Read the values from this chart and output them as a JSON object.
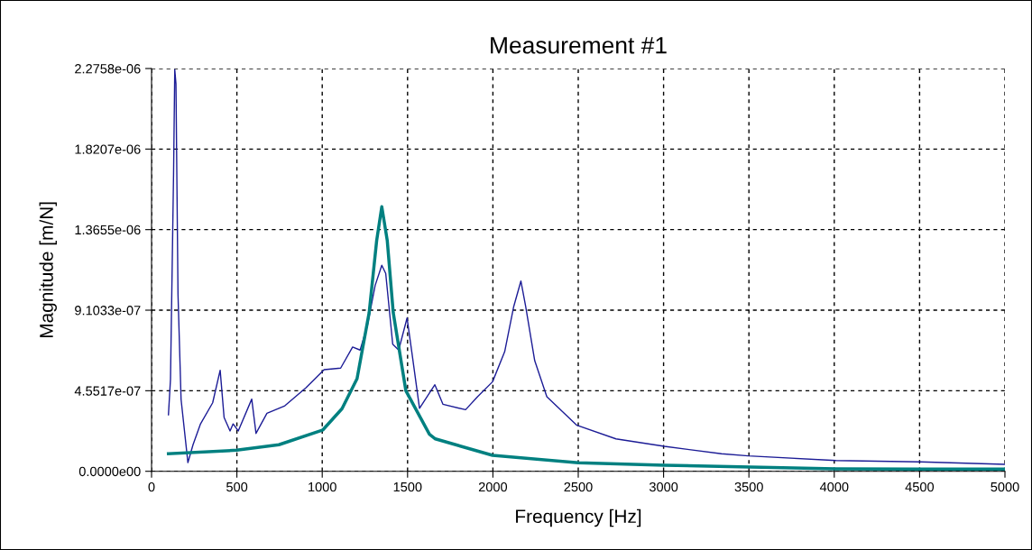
{
  "chart_data": {
    "type": "line",
    "title": "Measurement #1",
    "xlabel": "Frequency [Hz]",
    "ylabel": "Magnitude [m/N]",
    "xlim": [
      0,
      5000
    ],
    "xticks": [
      0,
      500,
      1000,
      1500,
      2000,
      2500,
      3000,
      3500,
      4000,
      4500,
      5000
    ],
    "ylim": [
      0,
      2.2758e-06
    ],
    "yticks": [
      {
        "value": 0,
        "label": "0.0000e00"
      },
      {
        "value": 4.5517e-07,
        "label": "4.5517e-07"
      },
      {
        "value": 9.1033e-07,
        "label": "9.1033e-07"
      },
      {
        "value": 1.3655e-06,
        "label": "1.3655e-06"
      },
      {
        "value": 1.8207e-06,
        "label": "1.8207e-06"
      },
      {
        "value": 2.2758e-06,
        "label": "2.2758e-06"
      }
    ],
    "grid": true,
    "legend": false,
    "marker": "none",
    "line_style": "solid",
    "series": [
      {
        "color": "#1c1c96",
        "x": [
          99,
          111,
          129,
          136,
          143,
          155,
          173,
          213,
          243,
          287,
          358,
          402,
          425,
          460,
          478,
          508,
          587,
          612,
          676,
          781,
          905,
          1011,
          1108,
          1178,
          1222,
          1266,
          1310,
          1349,
          1372,
          1413,
          1448,
          1497,
          1527,
          1570,
          1660,
          1707,
          1840,
          1910,
          1998,
          2069,
          2122,
          2164,
          2192,
          2245,
          2316,
          2492,
          2721,
          3004,
          3339,
          3497,
          4009,
          4503,
          5000
        ],
        "values": [
          3.19e-07,
          5.2e-07,
          1.68e-06,
          2.27e-06,
          2.19e-06,
          9.99e-07,
          4.06e-07,
          4.9e-08,
          1.5e-07,
          2.68e-07,
          3.87e-07,
          5.71e-07,
          3.04e-07,
          2.28e-07,
          2.68e-07,
          2.28e-07,
          4.08e-07,
          2.14e-07,
          3.28e-07,
          3.7e-07,
          4.72e-07,
          5.74e-07,
          5.83e-07,
          7.02e-07,
          6.85e-07,
          8.29e-07,
          1.05e-06,
          1.164e-06,
          1.118e-06,
          7.18e-07,
          6.85e-07,
          8.66e-07,
          6.59e-07,
          3.56e-07,
          4.89e-07,
          3.79e-07,
          3.48e-07,
          4.21e-07,
          5.06e-07,
          6.76e-07,
          9.31e-07,
          1.075e-06,
          9.31e-07,
          6.25e-07,
          4.21e-07,
          2.6e-07,
          1.83e-07,
          1.41e-07,
          9.9e-08,
          8.7e-08,
          6.1e-08,
          5.3e-08,
          3.9e-08
        ]
      },
      {
        "color": "#008080",
        "x": [
          99,
          499,
          746,
          1004,
          1116,
          1204,
          1275,
          1319,
          1349,
          1381,
          1416,
          1490,
          1628,
          1663,
          1998,
          2501,
          3004,
          4009,
          5000
        ],
        "values": [
          9.9e-08,
          1.19e-07,
          1.5e-07,
          2.34e-07,
          3.54e-07,
          5.23e-07,
          8.97e-07,
          1.304e-06,
          1.495e-06,
          1.304e-06,
          8.97e-07,
          4.55e-07,
          2.09e-07,
          1.83e-07,
          9e-08,
          4.8e-08,
          3.4e-08,
          1.4e-08,
          1.2e-08
        ]
      }
    ]
  }
}
